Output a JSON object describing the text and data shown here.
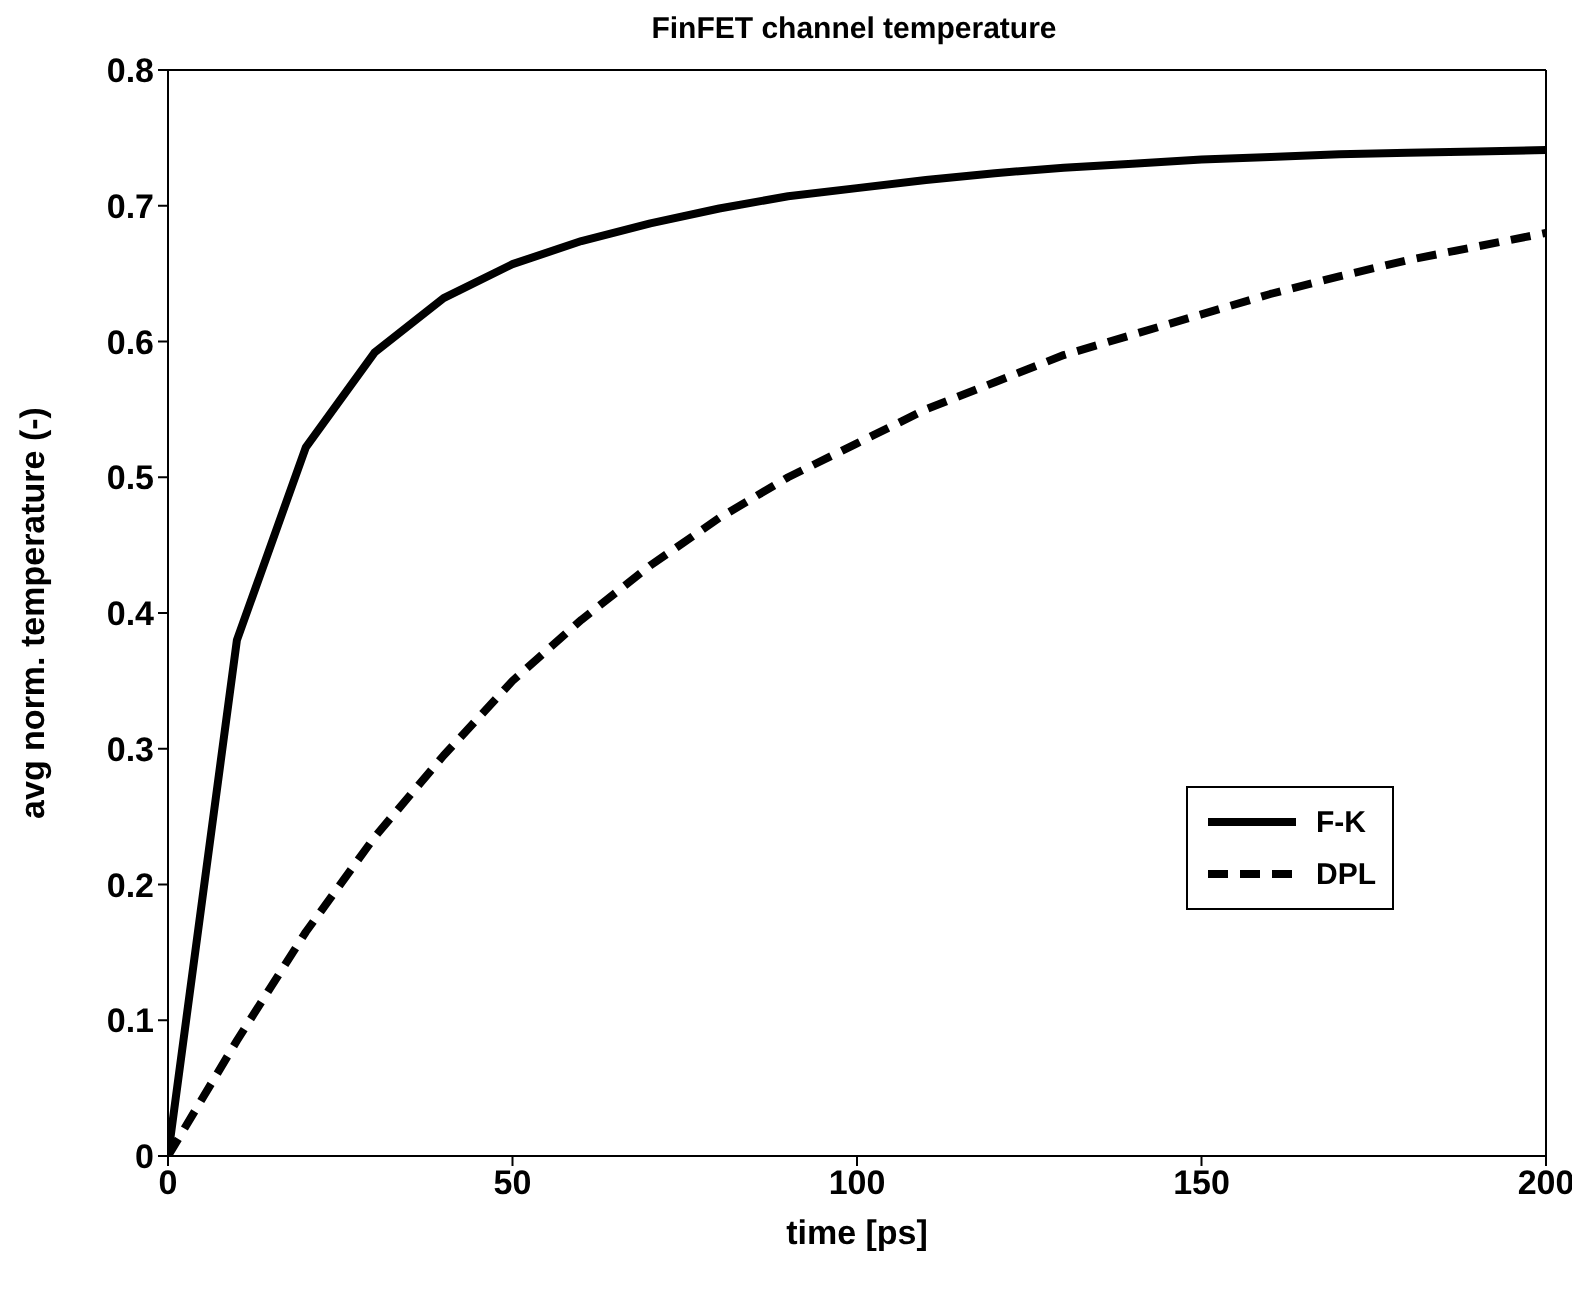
{
  "chart_data": {
    "type": "line",
    "title": "FinFET channel temperature",
    "xlabel": "time [ps]",
    "ylabel": "avg norm. temperature (-)",
    "x": [
      0,
      10,
      20,
      30,
      40,
      50,
      60,
      70,
      80,
      90,
      100,
      110,
      120,
      130,
      140,
      150,
      160,
      170,
      180,
      190,
      200
    ],
    "series": [
      {
        "name": "F-K",
        "color": "#000000",
        "line_style": "solid",
        "values": [
          0,
          0.38,
          0.522,
          0.592,
          0.632,
          0.657,
          0.674,
          0.687,
          0.698,
          0.707,
          0.713,
          0.719,
          0.724,
          0.728,
          0.731,
          0.734,
          0.736,
          0.738,
          0.739,
          0.74,
          0.741
        ]
      },
      {
        "name": "DPL",
        "color": "#000000",
        "line_style": "dashed",
        "values": [
          0,
          0.085,
          0.165,
          0.235,
          0.295,
          0.35,
          0.395,
          0.435,
          0.47,
          0.5,
          0.525,
          0.55,
          0.57,
          0.59,
          0.605,
          0.62,
          0.635,
          0.648,
          0.66,
          0.67,
          0.68
        ]
      }
    ],
    "xlim": [
      0,
      200
    ],
    "xticks": [
      0,
      50,
      100,
      150,
      200
    ],
    "ylim": [
      0,
      0.8
    ],
    "yticks": [
      0,
      0.1,
      0.2,
      0.3,
      0.4,
      0.5,
      0.6,
      0.7,
      0.8
    ],
    "grid": false,
    "legend": "right",
    "marker": "none"
  }
}
